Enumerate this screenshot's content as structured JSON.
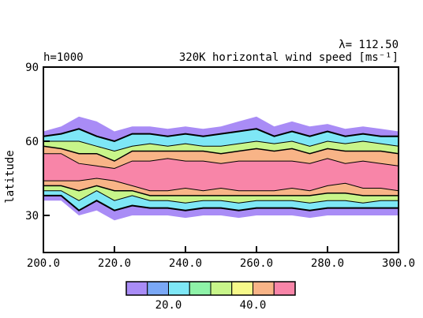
{
  "chart_data": {
    "type": "heatmap",
    "title": "320K horizontal wind speed [ms⁻¹]",
    "subtitle_left": "h=1000",
    "subtitle_right": "λ= 112.50",
    "ylabel": "latitude",
    "xlabel": "",
    "xlim": [
      200,
      300
    ],
    "ylim": [
      15,
      90
    ],
    "xticks": [
      "200.0",
      "220.0",
      "240.0",
      "260.0",
      "280.0",
      "300.0"
    ],
    "xtick_values": [
      200,
      220,
      240,
      260,
      280,
      300
    ],
    "yticks": [
      "90",
      "60",
      "30"
    ],
    "ytick_values": [
      90,
      60,
      30
    ],
    "colorbar": {
      "levels": [
        10,
        15,
        20,
        25,
        30,
        35,
        40,
        45,
        50
      ],
      "labels": [
        "20.0",
        "40.0"
      ],
      "label_values": [
        20,
        40
      ],
      "colors": [
        "#a98cf6",
        "#7aa8f6",
        "#7ee7f6",
        "#8ef2a8",
        "#c8f58a",
        "#f6f98a",
        "#f8b487",
        "#f885a8"
      ]
    },
    "jet": {
      "x": [
        200,
        205,
        210,
        215,
        220,
        225,
        230,
        235,
        240,
        245,
        250,
        255,
        260,
        265,
        270,
        275,
        280,
        285,
        290,
        295,
        300
      ],
      "center_lat": [
        48,
        48,
        46,
        47,
        46,
        47,
        46,
        46,
        46,
        46,
        45,
        46,
        46,
        46,
        46,
        45,
        46,
        46,
        45,
        45,
        46
      ],
      "band_50": [
        [
          44,
          55
        ],
        [
          44,
          55
        ],
        [
          44,
          51
        ],
        [
          45,
          50
        ],
        [
          44,
          49
        ],
        [
          42,
          52
        ],
        [
          40,
          52
        ],
        [
          40,
          53
        ],
        [
          41,
          52
        ],
        [
          40,
          52
        ],
        [
          41,
          51
        ],
        [
          40,
          52
        ],
        [
          40,
          52
        ],
        [
          40,
          52
        ],
        [
          41,
          52
        ],
        [
          40,
          51
        ],
        [
          42,
          53
        ],
        [
          43,
          51
        ],
        [
          41,
          52
        ],
        [
          41,
          51
        ],
        [
          40,
          50
        ]
      ],
      "band_40": [
        [
          42,
          58
        ],
        [
          42,
          57
        ],
        [
          40,
          55
        ],
        [
          42,
          55
        ],
        [
          40,
          52
        ],
        [
          40,
          56
        ],
        [
          38,
          56
        ],
        [
          38,
          56
        ],
        [
          38,
          56
        ],
        [
          38,
          56
        ],
        [
          38,
          55
        ],
        [
          38,
          56
        ],
        [
          38,
          57
        ],
        [
          38,
          56
        ],
        [
          38,
          57
        ],
        [
          38,
          55
        ],
        [
          39,
          57
        ],
        [
          39,
          56
        ],
        [
          38,
          56
        ],
        [
          38,
          56
        ],
        [
          38,
          55
        ]
      ],
      "band_30": [
        [
          40,
          60
        ],
        [
          40,
          60
        ],
        [
          36,
          60
        ],
        [
          40,
          58
        ],
        [
          36,
          56
        ],
        [
          38,
          58
        ],
        [
          36,
          59
        ],
        [
          36,
          58
        ],
        [
          35,
          59
        ],
        [
          36,
          58
        ],
        [
          36,
          58
        ],
        [
          35,
          59
        ],
        [
          36,
          60
        ],
        [
          36,
          59
        ],
        [
          36,
          60
        ],
        [
          35,
          58
        ],
        [
          36,
          60
        ],
        [
          36,
          59
        ],
        [
          35,
          60
        ],
        [
          36,
          59
        ],
        [
          36,
          58
        ]
      ],
      "band_20": [
        [
          38,
          62
        ],
        [
          38,
          63
        ],
        [
          32,
          65
        ],
        [
          36,
          62
        ],
        [
          32,
          60
        ],
        [
          34,
          63
        ],
        [
          33,
          63
        ],
        [
          33,
          62
        ],
        [
          32,
          63
        ],
        [
          33,
          62
        ],
        [
          33,
          63
        ],
        [
          32,
          64
        ],
        [
          33,
          65
        ],
        [
          33,
          62
        ],
        [
          33,
          64
        ],
        [
          32,
          62
        ],
        [
          33,
          64
        ],
        [
          33,
          62
        ],
        [
          33,
          63
        ],
        [
          33,
          62
        ],
        [
          33,
          62
        ]
      ],
      "band_10": [
        [
          36,
          64
        ],
        [
          36,
          66
        ],
        [
          30,
          70
        ],
        [
          32,
          68
        ],
        [
          28,
          64
        ],
        [
          30,
          66
        ],
        [
          30,
          66
        ],
        [
          30,
          65
        ],
        [
          29,
          66
        ],
        [
          30,
          65
        ],
        [
          30,
          66
        ],
        [
          29,
          68
        ],
        [
          30,
          70
        ],
        [
          30,
          66
        ],
        [
          30,
          68
        ],
        [
          29,
          66
        ],
        [
          30,
          67
        ],
        [
          30,
          65
        ],
        [
          30,
          66
        ],
        [
          30,
          65
        ],
        [
          30,
          64
        ]
      ]
    }
  }
}
